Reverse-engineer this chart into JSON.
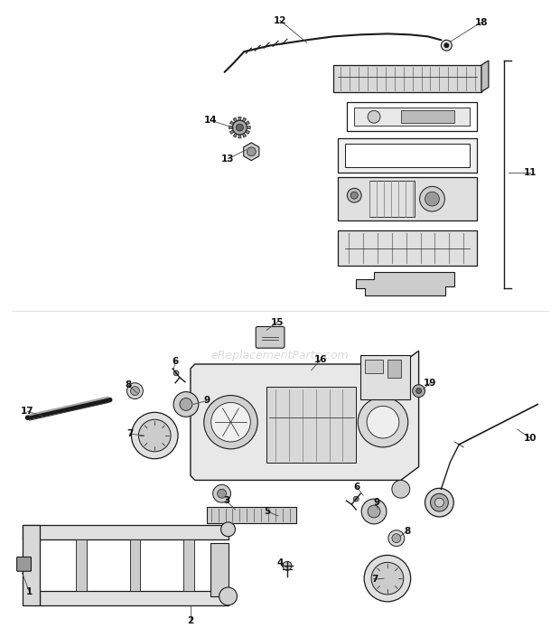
{
  "bg_color": "#ffffff",
  "line_color": "#1a1a1a",
  "label_color": "#111111",
  "watermark": "eReplacementParts.com",
  "fig_width": 6.2,
  "fig_height": 6.95,
  "dpi": 100
}
